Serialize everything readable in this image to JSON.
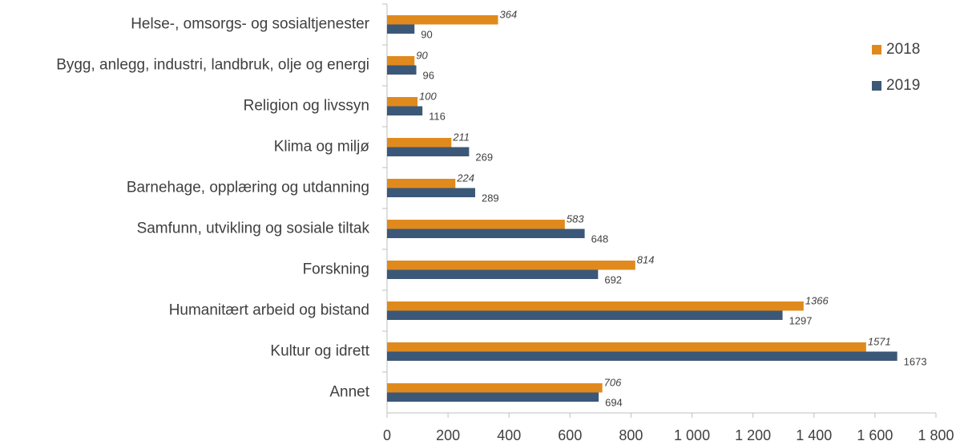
{
  "chart_data": {
    "type": "hbar",
    "categories": [
      "Helse-, omsorgs- og sosialtjenester",
      "Bygg, anlegg, industri, landbruk, olje og energi",
      "Religion og livssyn",
      "Klima og miljø",
      "Barnehage, opplæring og utdanning",
      "Samfunn, utvikling og sosiale tiltak",
      "Forskning",
      "Humanitært arbeid og bistand",
      "Kultur og idrett",
      "Annet"
    ],
    "series": [
      {
        "name": "2018",
        "color": "#e08a1e",
        "values": [
          364,
          90,
          100,
          211,
          224,
          583,
          814,
          1366,
          1571,
          706
        ]
      },
      {
        "name": "2019",
        "color": "#3b5878",
        "values": [
          90,
          96,
          116,
          269,
          289,
          648,
          692,
          1297,
          1673,
          694
        ]
      }
    ],
    "xlim": [
      0,
      1800
    ],
    "xticks": [
      0,
      200,
      400,
      600,
      800,
      {
        "value": 1000,
        "label": "1 000"
      },
      {
        "value": 1200,
        "label": "1 200"
      },
      {
        "value": 1400,
        "label": "1 400"
      },
      {
        "value": 1600,
        "label": "1 600"
      },
      {
        "value": 1800,
        "label": "1 800"
      }
    ],
    "legend": "right",
    "grid": false
  }
}
